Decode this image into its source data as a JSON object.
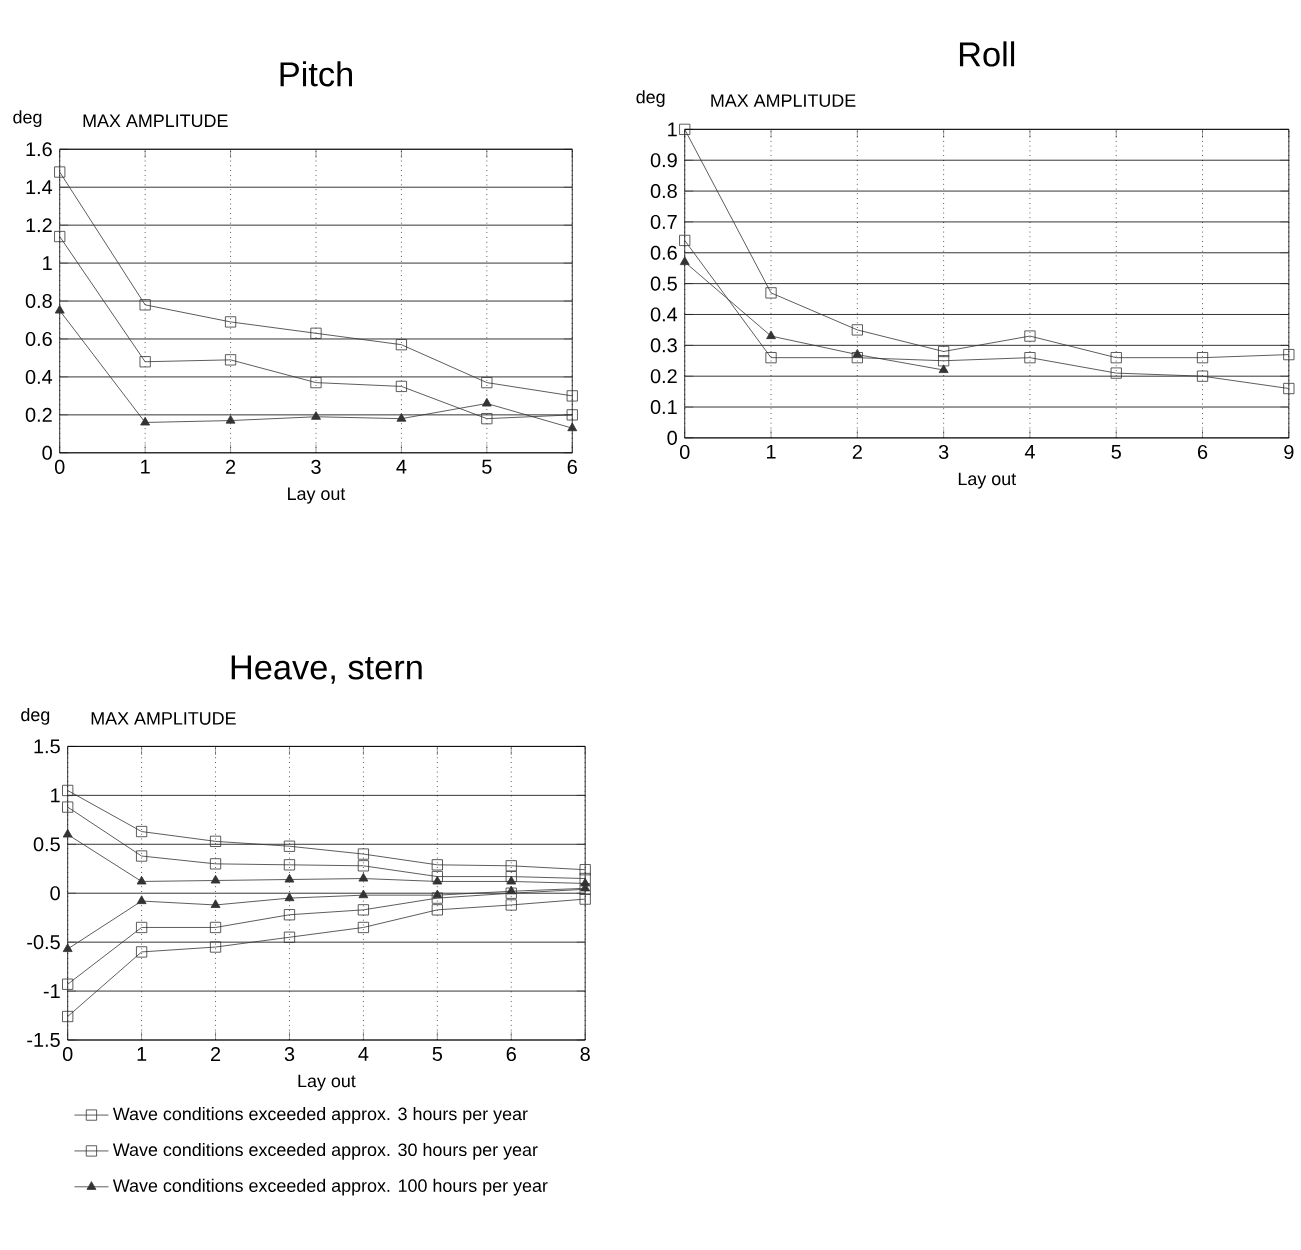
{
  "chart_data": [
    {
      "type": "line",
      "title": "Pitch",
      "ylabel": "deg",
      "xlabel": "Lay out",
      "annotations": [
        "MAX AMPLITUDE"
      ],
      "categories": [
        "0",
        "1",
        "2",
        "3",
        "4",
        "5",
        "6"
      ],
      "ylim": [
        0,
        1.6
      ],
      "yticks": [
        0,
        0.2,
        0.4,
        0.6,
        0.8,
        1,
        1.2,
        1.4,
        1.6
      ],
      "grid": true,
      "series": [
        {
          "color": "#333333",
          "marker": "square",
          "values": [
            1.48,
            0.78,
            0.69,
            0.63,
            0.57,
            0.37,
            0.3
          ]
        },
        {
          "color": "#333333",
          "marker": "square",
          "values": [
            1.14,
            0.48,
            0.49,
            0.37,
            0.35,
            0.18,
            0.2
          ]
        },
        {
          "color": "#333333",
          "marker": "triangle",
          "values": [
            0.75,
            0.16,
            0.17,
            0.19,
            0.18,
            0.26,
            0.13
          ]
        }
      ]
    },
    {
      "type": "line",
      "title": "Roll",
      "ylabel": "deg",
      "xlabel": "Lay out",
      "annotations": [
        "MAX AMPLITUDE"
      ],
      "categories": [
        "0",
        "1",
        "2",
        "3",
        "4",
        "5",
        "6",
        "9"
      ],
      "ylim": [
        0,
        1
      ],
      "yticks": [
        0,
        0.1,
        0.2,
        0.3,
        0.4,
        0.5,
        0.6,
        0.7,
        0.8,
        0.9,
        1
      ],
      "grid": true,
      "series": [
        {
          "color": "#333333",
          "marker": "square",
          "values": [
            1.0,
            0.47,
            0.35,
            0.28,
            0.33,
            0.26,
            0.26,
            0.27
          ]
        },
        {
          "color": "#333333",
          "marker": "square",
          "values": [
            0.64,
            0.26,
            0.26,
            0.25,
            0.26,
            0.21,
            0.2,
            0.16
          ]
        },
        {
          "color": "#333333",
          "marker": "triangle",
          "values": [
            0.57,
            0.33,
            0.27,
            0.22,
            null,
            null,
            null,
            null
          ]
        }
      ]
    },
    {
      "type": "line",
      "title": "Heave, stern",
      "ylabel": "deg",
      "xlabel": "Lay out",
      "annotations": [
        "MAX AMPLITUDE"
      ],
      "categories": [
        "0",
        "1",
        "2",
        "3",
        "4",
        "5",
        "6",
        "8"
      ],
      "ylim": [
        -1.5,
        1.5
      ],
      "yticks": [
        -1.5,
        -1,
        -0.5,
        0,
        0.5,
        1,
        1.5
      ],
      "grid": true,
      "legend": "bottom",
      "series": [
        {
          "name": "Wave conditions exceeded approx. 3 hours per year",
          "color": "#333333",
          "marker": "square",
          "values": [
            1.05,
            0.63,
            0.53,
            0.48,
            0.4,
            0.29,
            0.28,
            0.24
          ]
        },
        {
          "name": "Wave conditions exceeded approx. 30 hours per year",
          "color": "#333333",
          "marker": "square",
          "values": [
            0.88,
            0.38,
            0.3,
            0.29,
            0.28,
            0.17,
            0.17,
            0.15
          ]
        },
        {
          "name": "Wave conditions exceeded approx. 100 hours per year",
          "color": "#333333",
          "marker": "triangle",
          "values": [
            0.6,
            0.12,
            0.13,
            0.14,
            0.15,
            0.12,
            0.12,
            0.1
          ]
        },
        {
          "color": "#333333",
          "marker": "triangle",
          "values": [
            -0.57,
            -0.08,
            -0.12,
            -0.05,
            -0.02,
            -0.02,
            0.02,
            0.05
          ]
        },
        {
          "color": "#333333",
          "marker": "square",
          "values": [
            -0.93,
            -0.35,
            -0.35,
            -0.22,
            -0.17,
            -0.05,
            0.0,
            0.04
          ]
        },
        {
          "color": "#333333",
          "marker": "square",
          "values": [
            -1.26,
            -0.6,
            -0.55,
            -0.45,
            -0.35,
            -0.17,
            -0.12,
            -0.06
          ]
        }
      ]
    }
  ]
}
